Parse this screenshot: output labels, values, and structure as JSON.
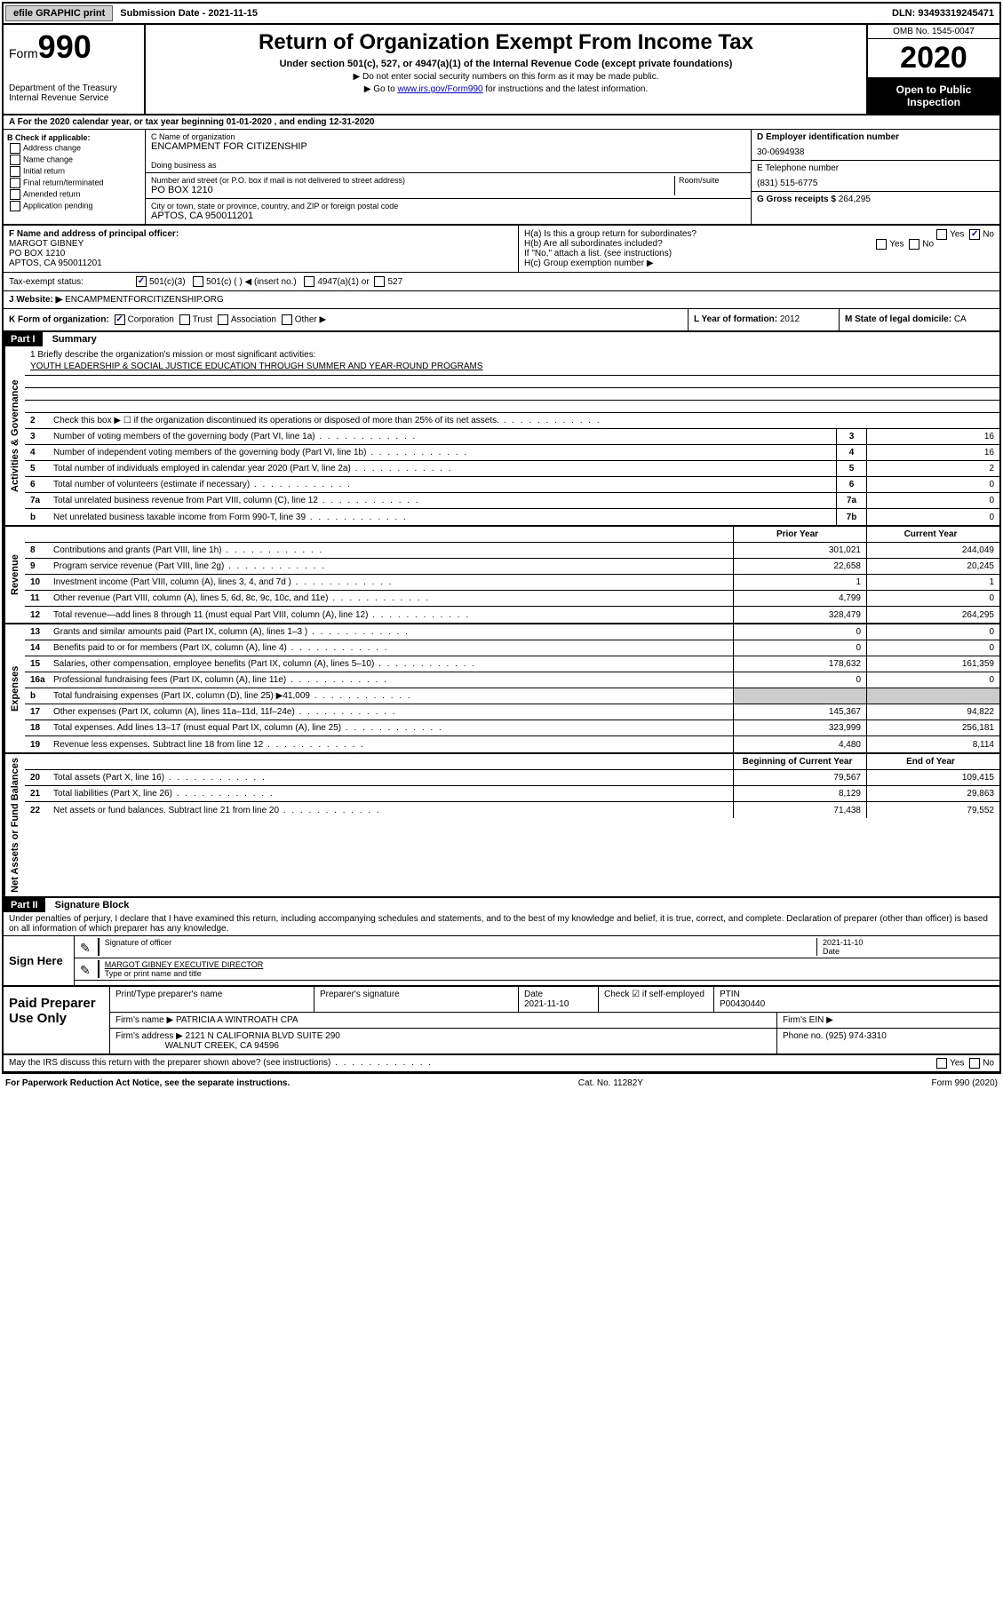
{
  "top_bar": {
    "efile_label": "efile GRAPHIC print",
    "sub_date_label": "Submission Date - 2021-11-15",
    "dln": "DLN: 93493319245471"
  },
  "header": {
    "form_word": "Form",
    "form_num": "990",
    "dept": "Department of the Treasury",
    "irs": "Internal Revenue Service",
    "title": "Return of Organization Exempt From Income Tax",
    "sub": "Under section 501(c), 527, or 4947(a)(1) of the Internal Revenue Code (except private foundations)",
    "note1": "▶ Do not enter social security numbers on this form as it may be made public.",
    "note2_pre": "▶ Go to ",
    "note2_link": "www.irs.gov/Form990",
    "note2_post": " for instructions and the latest information.",
    "omb": "OMB No. 1545-0047",
    "year": "2020",
    "inspect": "Open to Public Inspection"
  },
  "tax_year": "A For the 2020 calendar year, or tax year beginning 01-01-2020 , and ending 12-31-2020",
  "box_b": {
    "title": "B Check if applicable:",
    "items": [
      "Address change",
      "Name change",
      "Initial return",
      "Final return/terminated",
      "Amended return",
      "Application pending"
    ]
  },
  "box_c": {
    "name_label": "C Name of organization",
    "name": "ENCAMPMENT FOR CITIZENSHIP",
    "dba_label": "Doing business as",
    "addr_label": "Number and street (or P.O. box if mail is not delivered to street address)",
    "room_label": "Room/suite",
    "addr": "PO BOX 1210",
    "city_label": "City or town, state or province, country, and ZIP or foreign postal code",
    "city": "APTOS, CA  950011201"
  },
  "box_d": {
    "label": "D Employer identification number",
    "val": "30-0694938"
  },
  "box_e": {
    "label": "E Telephone number",
    "val": "(831) 515-6775"
  },
  "box_g": {
    "label": "G Gross receipts $",
    "val": "264,295"
  },
  "box_f": {
    "label": "F Name and address of principal officer:",
    "name": "MARGOT GIBNEY",
    "addr1": "PO BOX 1210",
    "addr2": "APTOS, CA  950011201"
  },
  "box_h": {
    "ha": "H(a)  Is this a group return for subordinates?",
    "hb": "H(b)  Are all subordinates included?",
    "hb_note": "If \"No,\" attach a list. (see instructions)",
    "hc": "H(c)  Group exemption number ▶",
    "yes": "Yes",
    "no": "No"
  },
  "box_i": {
    "label": "Tax-exempt status:",
    "opt1": "501(c)(3)",
    "opt2": "501(c) (  ) ◀ (insert no.)",
    "opt3": "4947(a)(1) or",
    "opt4": "527"
  },
  "box_j": {
    "label": "J   Website: ▶",
    "val": "ENCAMPMENTFORCITIZENSHIP.ORG"
  },
  "box_k": {
    "label": "K Form of organization:",
    "corp": "Corporation",
    "trust": "Trust",
    "assoc": "Association",
    "other": "Other ▶"
  },
  "box_l": {
    "label": "L Year of formation:",
    "val": "2012"
  },
  "box_m": {
    "label": "M State of legal domicile:",
    "val": "CA"
  },
  "part1": {
    "label": "Part I",
    "title": "Summary"
  },
  "mission": {
    "label": "1  Briefly describe the organization's mission or most significant activities:",
    "val": "YOUTH LEADERSHIP & SOCIAL JUSTICE EDUCATION THROUGH SUMMER AND YEAR-ROUND PROGRAMS"
  },
  "side_labels": {
    "gov": "Activities & Governance",
    "rev": "Revenue",
    "exp": "Expenses",
    "net": "Net Assets or Fund Balances"
  },
  "gov_lines": [
    {
      "n": "2",
      "d": "Check this box ▶ ☐ if the organization discontinued its operations or disposed of more than 25% of its net assets."
    },
    {
      "n": "3",
      "d": "Number of voting members of the governing body (Part VI, line 1a)",
      "box": "3",
      "v": "16"
    },
    {
      "n": "4",
      "d": "Number of independent voting members of the governing body (Part VI, line 1b)",
      "box": "4",
      "v": "16"
    },
    {
      "n": "5",
      "d": "Total number of individuals employed in calendar year 2020 (Part V, line 2a)",
      "box": "5",
      "v": "2"
    },
    {
      "n": "6",
      "d": "Total number of volunteers (estimate if necessary)",
      "box": "6",
      "v": "0"
    },
    {
      "n": "7a",
      "d": "Total unrelated business revenue from Part VIII, column (C), line 12",
      "box": "7a",
      "v": "0"
    },
    {
      "n": "b",
      "d": "Net unrelated business taxable income from Form 990-T, line 39",
      "box": "7b",
      "v": "0"
    }
  ],
  "two_col_header": {
    "prior": "Prior Year",
    "current": "Current Year"
  },
  "rev_lines": [
    {
      "n": "8",
      "d": "Contributions and grants (Part VIII, line 1h)",
      "p": "301,021",
      "c": "244,049"
    },
    {
      "n": "9",
      "d": "Program service revenue (Part VIII, line 2g)",
      "p": "22,658",
      "c": "20,245"
    },
    {
      "n": "10",
      "d": "Investment income (Part VIII, column (A), lines 3, 4, and 7d )",
      "p": "1",
      "c": "1"
    },
    {
      "n": "11",
      "d": "Other revenue (Part VIII, column (A), lines 5, 6d, 8c, 9c, 10c, and 11e)",
      "p": "4,799",
      "c": "0"
    },
    {
      "n": "12",
      "d": "Total revenue—add lines 8 through 11 (must equal Part VIII, column (A), line 12)",
      "p": "328,479",
      "c": "264,295"
    }
  ],
  "exp_lines": [
    {
      "n": "13",
      "d": "Grants and similar amounts paid (Part IX, column (A), lines 1–3 )",
      "p": "0",
      "c": "0"
    },
    {
      "n": "14",
      "d": "Benefits paid to or for members (Part IX, column (A), line 4)",
      "p": "0",
      "c": "0"
    },
    {
      "n": "15",
      "d": "Salaries, other compensation, employee benefits (Part IX, column (A), lines 5–10)",
      "p": "178,632",
      "c": "161,359"
    },
    {
      "n": "16a",
      "d": "Professional fundraising fees (Part IX, column (A), line 11e)",
      "p": "0",
      "c": "0"
    },
    {
      "n": "b",
      "d": "Total fundraising expenses (Part IX, column (D), line 25) ▶41,009",
      "p": "",
      "c": ""
    },
    {
      "n": "17",
      "d": "Other expenses (Part IX, column (A), lines 11a–11d, 11f–24e)",
      "p": "145,367",
      "c": "94,822"
    },
    {
      "n": "18",
      "d": "Total expenses. Add lines 13–17 (must equal Part IX, column (A), line 25)",
      "p": "323,999",
      "c": "256,181"
    },
    {
      "n": "19",
      "d": "Revenue less expenses. Subtract line 18 from line 12",
      "p": "4,480",
      "c": "8,114"
    }
  ],
  "net_header": {
    "begin": "Beginning of Current Year",
    "end": "End of Year"
  },
  "net_lines": [
    {
      "n": "20",
      "d": "Total assets (Part X, line 16)",
      "p": "79,567",
      "c": "109,415"
    },
    {
      "n": "21",
      "d": "Total liabilities (Part X, line 26)",
      "p": "8,129",
      "c": "29,863"
    },
    {
      "n": "22",
      "d": "Net assets or fund balances. Subtract line 21 from line 20",
      "p": "71,438",
      "c": "79,552"
    }
  ],
  "part2": {
    "label": "Part II",
    "title": "Signature Block"
  },
  "penalties": "Under penalties of perjury, I declare that I have examined this return, including accompanying schedules and statements, and to the best of my knowledge and belief, it is true, correct, and complete. Declaration of preparer (other than officer) is based on all information of which preparer has any knowledge.",
  "sign": {
    "here": "Sign Here",
    "sig_of": "Signature of officer",
    "date": "Date",
    "date_val": "2021-11-10",
    "name": "MARGOT GIBNEY  EXECUTIVE DIRECTOR",
    "type_label": "Type or print name and title"
  },
  "prep": {
    "title": "Paid Preparer Use Only",
    "print_label": "Print/Type preparer's name",
    "sig_label": "Preparer's signature",
    "date_label": "Date",
    "date_val": "2021-11-10",
    "check_label": "Check ☑ if self-employed",
    "ptin_label": "PTIN",
    "ptin": "P00430440",
    "firm_name_label": "Firm's name    ▶",
    "firm_name": "PATRICIA A WINTROATH CPA",
    "firm_ein_label": "Firm's EIN ▶",
    "firm_addr_label": "Firm's address ▶",
    "firm_addr1": "2121 N CALIFORNIA BLVD SUITE 290",
    "firm_addr2": "WALNUT CREEK, CA  94596",
    "phone_label": "Phone no.",
    "phone": "(925) 974-3310"
  },
  "discuss": "May the IRS discuss this return with the preparer shown above? (see instructions)",
  "footer": {
    "pra": "For Paperwork Reduction Act Notice, see the separate instructions.",
    "cat": "Cat. No. 11282Y",
    "form": "Form 990 (2020)"
  }
}
